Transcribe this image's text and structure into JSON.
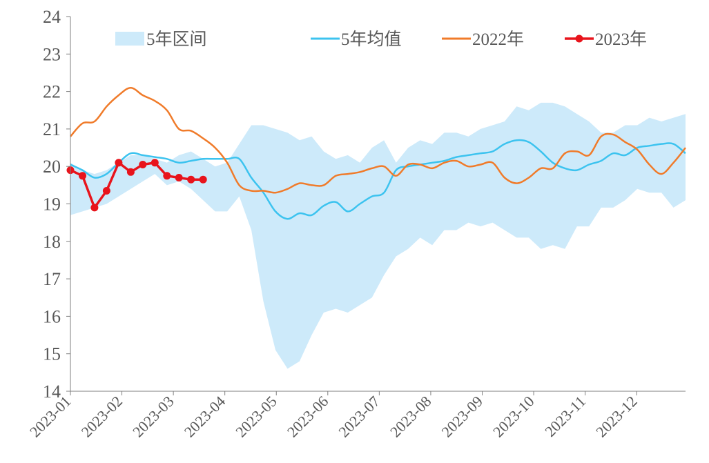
{
  "chart_data": {
    "type": "line",
    "title": "",
    "xlabel": "",
    "ylabel": "",
    "ylim": [
      14,
      24
    ],
    "yticks": [
      14,
      15,
      16,
      17,
      18,
      19,
      20,
      21,
      22,
      23,
      24
    ],
    "x_months": [
      "2023-01",
      "2023-02",
      "2023-03",
      "2023-04",
      "2023-05",
      "2023-06",
      "2023-07",
      "2023-08",
      "2023-09",
      "2023-10",
      "2023-11",
      "2023-12"
    ],
    "week_count": 52,
    "grid": false,
    "legend_position": "top",
    "colors": {
      "band": "#cdeafa",
      "avg": "#3cc3ef",
      "y2022": "#f07b2a",
      "y2023": "#e8141c",
      "axis": "#7f7f7f",
      "text": "#595959"
    },
    "legend": [
      {
        "name": "5年区间",
        "key": "band"
      },
      {
        "name": "5年均值",
        "key": "avg"
      },
      {
        "name": "2022年",
        "key": "y2022"
      },
      {
        "name": "2023年",
        "key": "y2023"
      }
    ],
    "series": {
      "band_max": [
        20.1,
        19.9,
        19.8,
        19.9,
        20.1,
        20.3,
        20.3,
        20.2,
        20.1,
        20.3,
        20.4,
        20.2,
        20.0,
        20.1,
        20.6,
        21.1,
        21.1,
        21.0,
        20.9,
        20.7,
        20.8,
        20.4,
        20.2,
        20.3,
        20.1,
        20.5,
        20.7,
        20.1,
        20.5,
        20.7,
        20.6,
        20.9,
        20.9,
        20.8,
        21.0,
        21.1,
        21.2,
        21.6,
        21.5,
        21.7,
        21.7,
        21.6,
        21.4,
        21.2,
        20.9,
        20.9,
        21.1,
        21.1,
        21.3,
        21.2,
        21.3,
        21.4
      ],
      "band_min": [
        18.7,
        18.8,
        18.9,
        19.0,
        19.2,
        19.4,
        19.6,
        19.8,
        19.5,
        19.6,
        19.4,
        19.1,
        18.8,
        18.8,
        19.2,
        18.3,
        16.4,
        15.1,
        14.6,
        14.8,
        15.5,
        16.1,
        16.2,
        16.1,
        16.3,
        16.5,
        17.1,
        17.6,
        17.8,
        18.1,
        17.9,
        18.3,
        18.3,
        18.5,
        18.4,
        18.5,
        18.3,
        18.1,
        18.1,
        17.8,
        17.9,
        17.8,
        18.4,
        18.4,
        18.9,
        18.9,
        19.1,
        19.4,
        19.3,
        19.3,
        18.9,
        19.1
      ],
      "avg": [
        20.05,
        19.9,
        19.7,
        19.8,
        20.1,
        20.35,
        20.3,
        20.25,
        20.2,
        20.1,
        20.15,
        20.2,
        20.2,
        20.2,
        20.2,
        19.7,
        19.3,
        18.8,
        18.6,
        18.75,
        18.7,
        18.95,
        19.05,
        18.8,
        19.0,
        19.2,
        19.3,
        19.9,
        20.0,
        20.05,
        20.1,
        20.15,
        20.25,
        20.3,
        20.35,
        20.4,
        20.6,
        20.7,
        20.65,
        20.4,
        20.1,
        19.95,
        19.9,
        20.05,
        20.15,
        20.35,
        20.3,
        20.5,
        20.55,
        20.6,
        20.6,
        20.35
      ],
      "y2022": [
        20.8,
        21.15,
        21.2,
        21.6,
        21.9,
        22.1,
        21.9,
        21.75,
        21.5,
        21.0,
        20.95,
        20.75,
        20.5,
        20.1,
        19.5,
        19.35,
        19.35,
        19.3,
        19.4,
        19.55,
        19.5,
        19.5,
        19.75,
        19.8,
        19.85,
        19.95,
        20.0,
        19.75,
        20.05,
        20.05,
        19.95,
        20.1,
        20.15,
        20.0,
        20.05,
        20.1,
        19.7,
        19.55,
        19.7,
        19.95,
        19.95,
        20.35,
        20.4,
        20.3,
        20.8,
        20.85,
        20.65,
        20.45,
        20.05,
        19.8,
        20.1,
        20.5
      ],
      "y2023": [
        19.9,
        19.75,
        18.9,
        19.35,
        20.1,
        19.85,
        20.05,
        20.1,
        19.75,
        19.7,
        19.65,
        19.65
      ]
    }
  }
}
